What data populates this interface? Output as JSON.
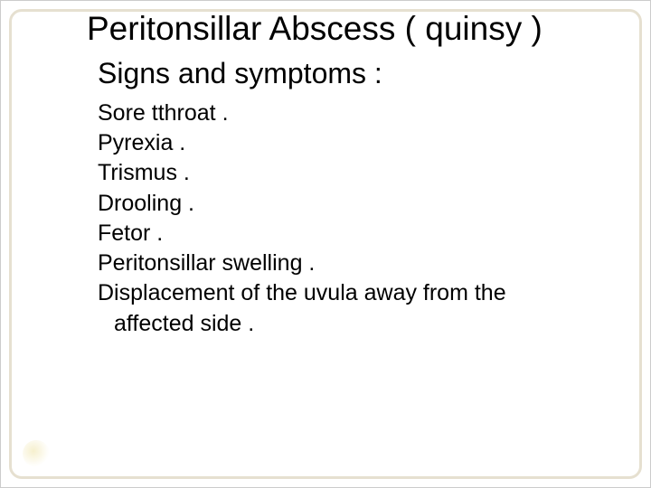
{
  "slide": {
    "background_color": "#ffffff",
    "frame_color": "#e6e0d0",
    "frame_border_width": 3,
    "frame_border_radius": 14,
    "glow_color": "rgba(245,238,200,0.9)"
  },
  "title": {
    "text": "Peritonsillar Abscess ( quinsy )",
    "fontsize": 37,
    "color": "#000000"
  },
  "subtitle": {
    "text": "Signs and symptoms :",
    "fontsize": 32,
    "color": "#000000"
  },
  "symptoms": {
    "fontsize": 25,
    "color": "#000000",
    "items": [
      "Sore tthroat .",
      "Pyrexia .",
      "Trismus .",
      "Drooling .",
      "Fetor .",
      "Peritonsillar swelling .",
      "Displacement of the uvula away from the"
    ],
    "continuation": "affected side ."
  }
}
